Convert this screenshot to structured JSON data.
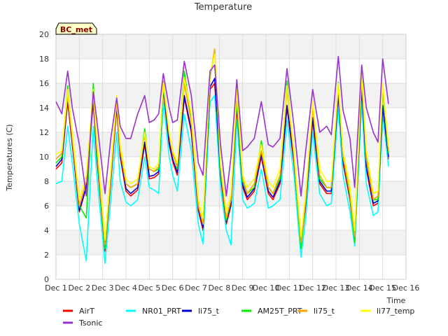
{
  "chart_data": {
    "type": "line",
    "title": "Temperature",
    "ylabel": "Temperatures (C)",
    "xlabel": "Time",
    "station_label": "BC_met",
    "xlim": [
      1,
      16
    ],
    "ylim": [
      0,
      20
    ],
    "y_ticks": [
      0,
      2,
      4,
      6,
      8,
      10,
      12,
      14,
      16,
      18,
      20
    ],
    "x_ticks": [
      {
        "v": 1,
        "label": "Dec 1"
      },
      {
        "v": 2,
        "label": "Dec 2"
      },
      {
        "v": 3,
        "label": "Dec 3"
      },
      {
        "v": 4,
        "label": "Dec 4"
      },
      {
        "v": 5,
        "label": "Dec 5"
      },
      {
        "v": 6,
        "label": "Dec 6"
      },
      {
        "v": 7,
        "label": "Dec 7"
      },
      {
        "v": 8,
        "label": "Dec 8"
      },
      {
        "v": 9,
        "label": "Dec 9"
      },
      {
        "v": 10,
        "label": "Dec 10"
      },
      {
        "v": 11,
        "label": "Dec 11"
      },
      {
        "v": 12,
        "label": "Dec 12"
      },
      {
        "v": 13,
        "label": "Dec 13"
      },
      {
        "v": 14,
        "label": "Dec 14"
      },
      {
        "v": 15,
        "label": "Dec 15"
      },
      {
        "v": 16,
        "label": "Dec 16"
      }
    ],
    "grid": true,
    "legend_position": "bottom",
    "x": [
      1.0,
      1.25,
      1.5,
      1.7,
      2.0,
      2.3,
      2.6,
      2.75,
      3.1,
      3.35,
      3.6,
      3.75,
      4.0,
      4.2,
      4.5,
      4.8,
      5.0,
      5.2,
      5.4,
      5.6,
      5.85,
      6.0,
      6.2,
      6.5,
      6.8,
      7.1,
      7.3,
      7.6,
      7.8,
      8.05,
      8.3,
      8.5,
      8.75,
      9.0,
      9.2,
      9.5,
      9.8,
      10.1,
      10.3,
      10.6,
      10.9,
      11.2,
      11.5,
      11.7,
      12.0,
      12.3,
      12.6,
      12.8,
      13.1,
      13.3,
      13.6,
      13.8,
      14.1,
      14.3,
      14.6,
      14.8,
      15.0,
      15.25
    ],
    "series": [
      {
        "name": "AirT",
        "color": "#ff0000",
        "values": [
          9.0,
          9.5,
          14.5,
          11.0,
          5.5,
          7.5,
          14.5,
          10.0,
          2.3,
          8.0,
          14.0,
          10.0,
          7.2,
          6.8,
          7.3,
          11.0,
          8.2,
          8.3,
          8.6,
          15.5,
          11.0,
          9.6,
          8.5,
          14.8,
          12.0,
          5.6,
          4.0,
          15.5,
          16.0,
          8.5,
          4.5,
          6.0,
          14.0,
          7.5,
          6.5,
          7.2,
          10.0,
          7.0,
          6.5,
          7.8,
          14.0,
          9.5,
          2.8,
          6.0,
          13.0,
          7.8,
          7.0,
          7.0,
          15.0,
          9.5,
          6.5,
          3.0,
          15.5,
          9.0,
          6.0,
          6.2,
          14.0,
          9.8
        ]
      },
      {
        "name": "NR01_PRT",
        "color": "#00ffff",
        "values": [
          7.8,
          8.0,
          12.5,
          9.5,
          4.5,
          1.5,
          12.5,
          8.5,
          1.3,
          6.5,
          12.0,
          8.0,
          6.3,
          6.0,
          6.5,
          10.0,
          7.5,
          7.3,
          7.0,
          14.5,
          10.0,
          8.5,
          7.2,
          13.5,
          10.5,
          4.5,
          2.9,
          14.5,
          15.0,
          7.5,
          4.0,
          2.8,
          13.0,
          6.5,
          5.8,
          6.2,
          9.0,
          5.8,
          6.0,
          6.5,
          13.0,
          8.5,
          1.8,
          5.0,
          12.0,
          7.0,
          6.0,
          6.2,
          14.0,
          8.5,
          5.5,
          2.7,
          14.5,
          7.8,
          5.2,
          5.5,
          13.5,
          9.2
        ]
      },
      {
        "name": "li75_t",
        "color": "#0000cc",
        "values": [
          9.2,
          9.8,
          14.8,
          11.2,
          5.6,
          7.6,
          14.7,
          10.2,
          2.5,
          8.2,
          14.2,
          10.2,
          7.4,
          7.0,
          7.5,
          11.2,
          8.4,
          8.5,
          8.8,
          15.7,
          11.2,
          9.8,
          8.7,
          15.0,
          12.2,
          5.8,
          4.2,
          15.7,
          16.4,
          8.7,
          4.7,
          6.2,
          14.2,
          7.7,
          6.7,
          7.4,
          10.2,
          7.2,
          6.7,
          8.0,
          14.2,
          9.7,
          3.0,
          6.2,
          13.2,
          8.0,
          7.2,
          7.2,
          15.2,
          9.7,
          6.7,
          3.2,
          15.7,
          9.2,
          6.2,
          6.4,
          14.2,
          10.0
        ]
      },
      {
        "name": "AM25T_PRT",
        "color": "#00ee00",
        "values": [
          9.5,
          10.0,
          15.8,
          11.5,
          6.0,
          5.0,
          16.0,
          10.5,
          2.5,
          8.5,
          14.8,
          10.5,
          7.8,
          7.5,
          7.8,
          12.3,
          9.0,
          8.8,
          9.0,
          15.8,
          11.8,
          10.5,
          9.0,
          17.0,
          13.0,
          6.0,
          4.5,
          16.5,
          18.6,
          9.0,
          4.8,
          6.5,
          14.5,
          8.0,
          7.0,
          7.5,
          11.3,
          7.5,
          7.0,
          8.2,
          16.2,
          10.0,
          2.5,
          6.5,
          14.3,
          8.2,
          7.5,
          7.5,
          16.1,
          10.0,
          6.8,
          3.0,
          17.0,
          10.0,
          6.5,
          6.5,
          15.5,
          10.3
        ]
      },
      {
        "name": "li75_t",
        "color": "#ffa500",
        "values": [
          9.8,
          10.3,
          15.0,
          11.5,
          6.0,
          8.0,
          15.0,
          10.8,
          2.8,
          8.5,
          14.5,
          10.5,
          7.8,
          7.5,
          7.8,
          11.8,
          9.0,
          8.8,
          9.2,
          16.2,
          11.8,
          10.2,
          9.2,
          16.0,
          12.8,
          6.0,
          4.5,
          16.5,
          18.8,
          9.2,
          5.0,
          6.5,
          15.0,
          8.2,
          7.0,
          7.8,
          10.5,
          7.5,
          7.0,
          8.5,
          15.5,
          10.0,
          3.0,
          6.5,
          14.0,
          8.5,
          7.5,
          7.5,
          15.8,
          10.0,
          7.0,
          3.5,
          16.5,
          9.8,
          6.5,
          6.8,
          15.8,
          10.5
        ]
      },
      {
        "name": "li77_temp",
        "color": "#ffff00",
        "values": [
          10.2,
          10.5,
          15.5,
          12.0,
          6.5,
          8.5,
          15.5,
          11.5,
          3.2,
          9.0,
          15.0,
          11.0,
          8.2,
          7.8,
          8.2,
          12.0,
          9.2,
          9.0,
          9.5,
          16.0,
          12.0,
          10.5,
          9.5,
          16.5,
          13.5,
          6.5,
          5.0,
          16.8,
          18.4,
          9.5,
          5.5,
          7.0,
          15.5,
          8.5,
          7.5,
          8.2,
          11.0,
          8.0,
          7.5,
          9.0,
          15.8,
          10.5,
          3.5,
          7.0,
          14.5,
          9.0,
          8.0,
          8.0,
          16.0,
          10.5,
          7.5,
          4.0,
          16.8,
          10.5,
          7.0,
          7.2,
          16.0,
          10.8
        ]
      },
      {
        "name": "Tsonic",
        "color": "#9932cc",
        "values": [
          14.5,
          13.5,
          17.0,
          14.0,
          11.0,
          6.8,
          15.3,
          13.0,
          7.0,
          11.5,
          14.8,
          12.5,
          11.5,
          11.5,
          13.5,
          15.0,
          12.8,
          13.0,
          13.5,
          16.8,
          14.0,
          12.8,
          13.0,
          17.8,
          15.0,
          9.5,
          8.5,
          17.0,
          17.5,
          11.0,
          6.8,
          10.0,
          16.3,
          10.5,
          10.8,
          11.5,
          14.5,
          11.0,
          10.8,
          11.5,
          17.2,
          12.5,
          6.8,
          10.5,
          15.5,
          12.0,
          12.5,
          11.8,
          18.2,
          13.8,
          11.5,
          7.5,
          17.5,
          14.0,
          12.0,
          11.2,
          18.0,
          14.3
        ]
      }
    ]
  }
}
